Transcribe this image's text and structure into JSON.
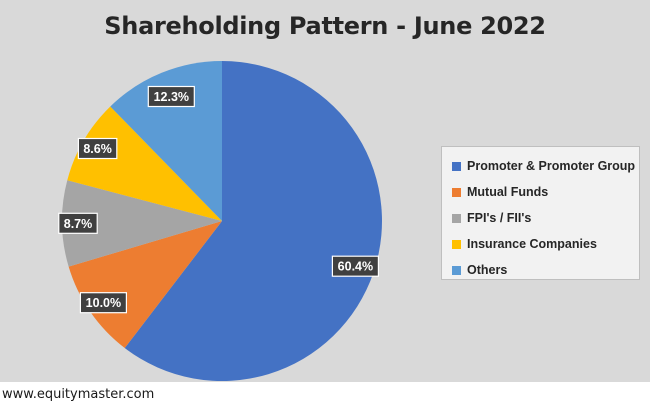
{
  "chart_data": {
    "type": "pie",
    "title": "Shareholding Pattern - June 2022",
    "categories": [
      "Promoter & Promoter Group",
      "Mutual Funds",
      "FPI's / FII's",
      "Insurance Companies",
      "Others"
    ],
    "values": [
      60.4,
      10.0,
      8.7,
      8.6,
      12.3
    ],
    "data_labels": [
      "60.4%",
      "10.0%",
      "8.7%",
      "8.6%",
      "12.3%"
    ],
    "colors": [
      "#4472c4",
      "#ed7d31",
      "#a5a5a5",
      "#ffc000",
      "#5b9bd5"
    ],
    "start_angle": "12 o'clock",
    "direction": "clockwise",
    "legend_position": "right"
  },
  "footer": {
    "source": "www.equitymaster.com"
  }
}
